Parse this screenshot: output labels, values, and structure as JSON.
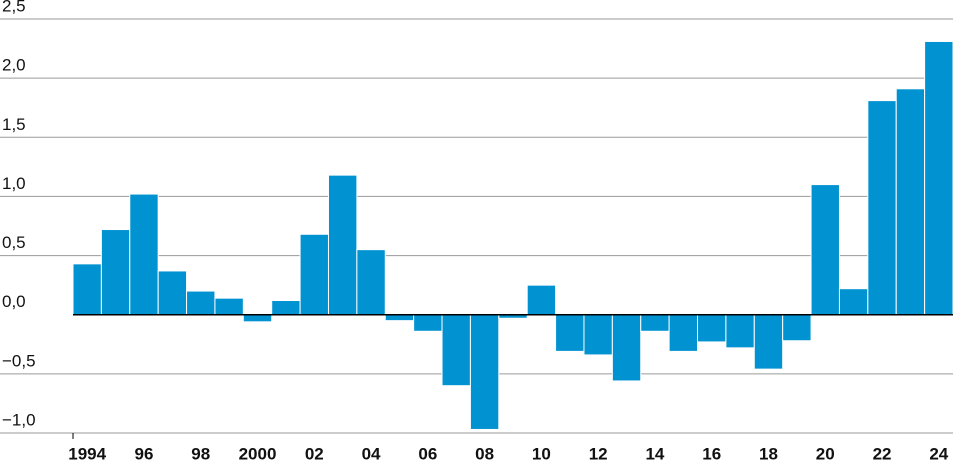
{
  "chart_data": {
    "type": "bar",
    "categories": [
      "1994",
      null,
      "96",
      null,
      "98",
      null,
      "2000",
      null,
      "02",
      null,
      "04",
      null,
      "06",
      null,
      "08",
      null,
      "10",
      null,
      "12",
      null,
      "14",
      null,
      "16",
      null,
      "18",
      null,
      "20",
      null,
      "22",
      null,
      "24"
    ],
    "values": [
      0.43,
      0.72,
      1.02,
      0.37,
      0.2,
      0.14,
      -0.06,
      0.12,
      0.68,
      1.18,
      0.55,
      -0.05,
      -0.14,
      -0.6,
      -0.97,
      -0.03,
      0.25,
      -0.31,
      -0.34,
      -0.56,
      -0.14,
      -0.31,
      -0.23,
      -0.28,
      -0.46,
      -0.22,
      1.1,
      0.22,
      1.81,
      1.91,
      2.31
    ],
    "color": "#0092d1",
    "ylim": [
      -1.0,
      2.5
    ],
    "yticks": [
      {
        "value": -1.0,
        "label": "−1,0"
      },
      {
        "value": -0.5,
        "label": "−0,5"
      },
      {
        "value": 0.0,
        "label": "0,0"
      },
      {
        "value": 0.5,
        "label": "0,5"
      },
      {
        "value": 1.0,
        "label": "1,0"
      },
      {
        "value": 1.5,
        "label": "1,5"
      },
      {
        "value": 2.0,
        "label": "2,0"
      },
      {
        "value": 2.5,
        "label": "2,5"
      }
    ],
    "grid": true
  }
}
